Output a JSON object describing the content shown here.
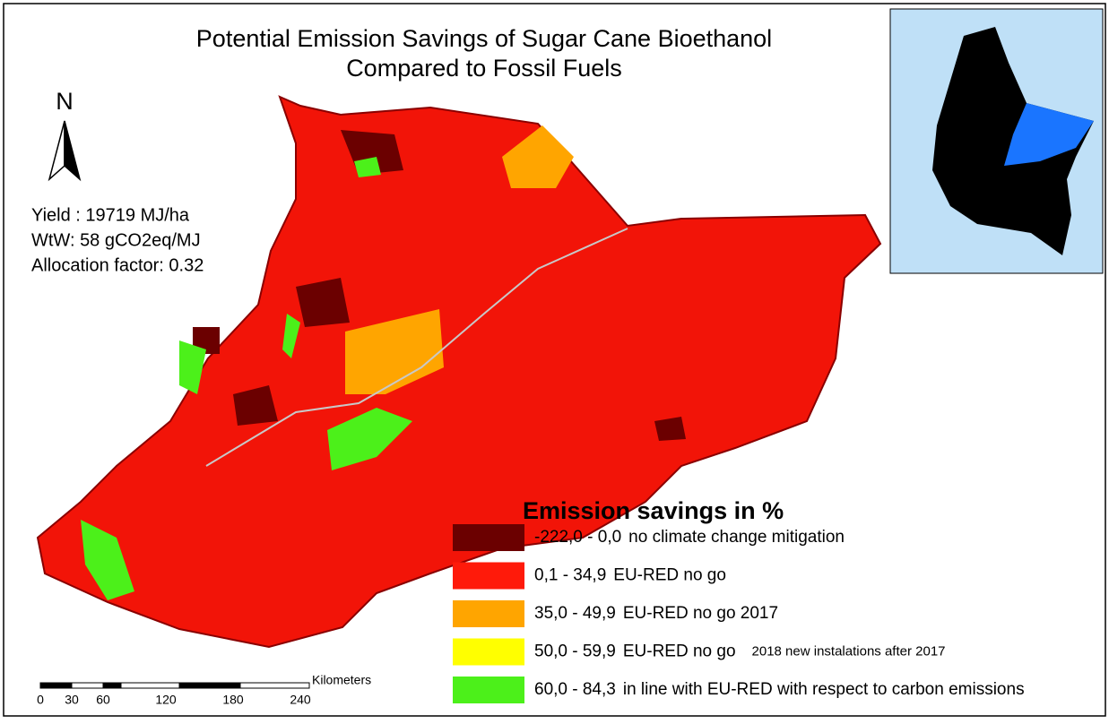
{
  "title": [
    "Potential Emission Savings of Sugar Cane Bioethanol",
    "Compared to Fossil Fuels"
  ],
  "north_label": "N",
  "info": [
    "Yield : 19719 MJ/ha",
    "WtW: 58 gCO2eq/MJ",
    "Allocation factor: 0.32"
  ],
  "legend": {
    "title": "Emission savings in %",
    "items": [
      {
        "range": "-222,0 - 0,0",
        "label": "no climate change mitigation",
        "color": "#6b0000"
      },
      {
        "range": "0,1 - 34,9",
        "label": "EU-RED no go",
        "color": "#ff1a0a"
      },
      {
        "range": "35,0 - 49,9",
        "label": "EU-RED no go 2017",
        "color": "#ffa500"
      },
      {
        "range": "50,0 - 59,9",
        "label": "EU-RED no go",
        "note": "2018 new instalations after 2017",
        "color": "#ffff00"
      },
      {
        "range": "60,0 - 84,3",
        "label": "in line with EU-RED with respect to carbon emissions",
        "color": "#4cf01a"
      }
    ]
  },
  "scale_bar": {
    "unit": "Kilometers",
    "labels": [
      "0",
      "30",
      "60",
      "120",
      "180",
      "240"
    ]
  }
}
